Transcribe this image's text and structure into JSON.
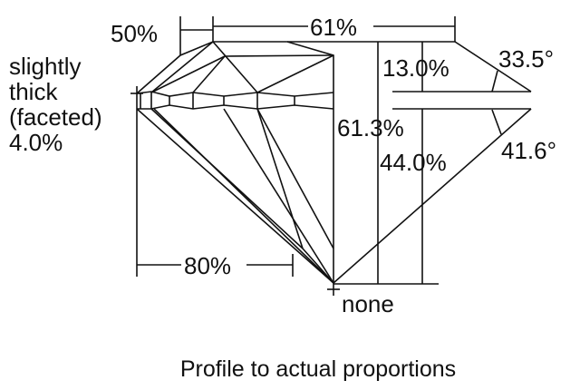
{
  "labels": {
    "crown_height_note": "50%",
    "table": "61%",
    "girdle_line1": "slightly",
    "girdle_line2": "thick",
    "girdle_line3": "(faceted)",
    "girdle_line4": "4.0%",
    "crown_height": "13.0%",
    "crown_angle": "33.5°",
    "total_depth": "61.3%",
    "pavilion_depth": "44.0%",
    "pavilion_angle": "41.6°",
    "lower_half": "80%",
    "culet": "none"
  },
  "caption": "Profile to actual proportions"
}
